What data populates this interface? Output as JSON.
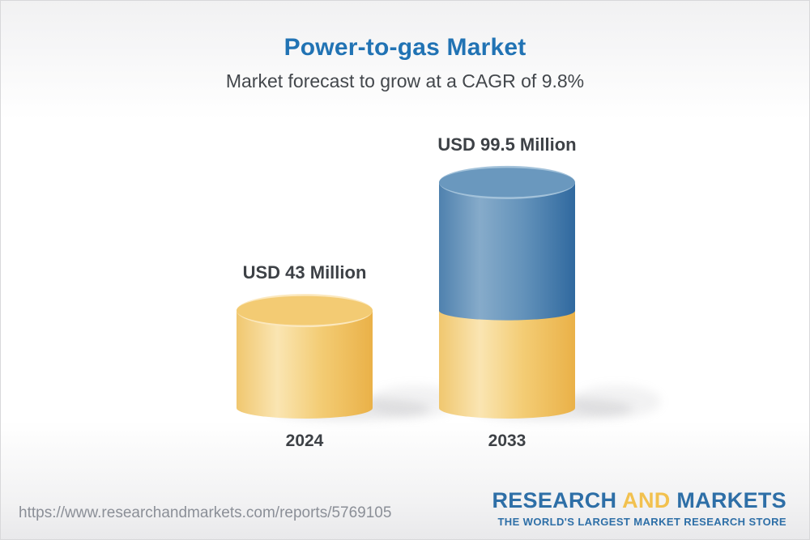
{
  "header": {
    "title": "Power-to-gas Market",
    "subtitle": "Market forecast to grow at a CAGR of 9.8%"
  },
  "chart_data": {
    "type": "bar",
    "style": "3d-cylinder",
    "categories": [
      "2024",
      "2033"
    ],
    "values": [
      43,
      99.5
    ],
    "value_labels": [
      "USD 43 Million",
      "USD 99.5 Million"
    ],
    "unit": "USD Million",
    "cagr_percent": 9.8,
    "title": "Power-to-gas Market",
    "subtitle": "Market forecast to grow at a CAGR of 9.8%",
    "bar_colors": [
      "#F2C766",
      "#5C8DB8"
    ],
    "note": "2033 cylinder is stacked: yellow base equals the 2024 value, blue upper section shows growth to 99.5"
  },
  "bars": [
    {
      "year": "2024",
      "label": "USD 43 Million"
    },
    {
      "year": "2033",
      "label": "USD 99.5 Million"
    }
  ],
  "footer": {
    "url": "https://www.researchandmarkets.com/reports/5769105",
    "logo": {
      "word1": "RESEARCH",
      "word2": "AND",
      "word3": "MARKETS",
      "tagline": "THE WORLD'S LARGEST MARKET RESEARCH STORE"
    }
  },
  "colors": {
    "title_blue": "#2173B4",
    "text_dark": "#3D4146",
    "url_gray": "#8B8F97",
    "logo_blue": "#2E6FA7",
    "logo_gold": "#F2C14F",
    "bar_yellow": "#F2C766",
    "bar_blue": "#5C8DB8"
  }
}
